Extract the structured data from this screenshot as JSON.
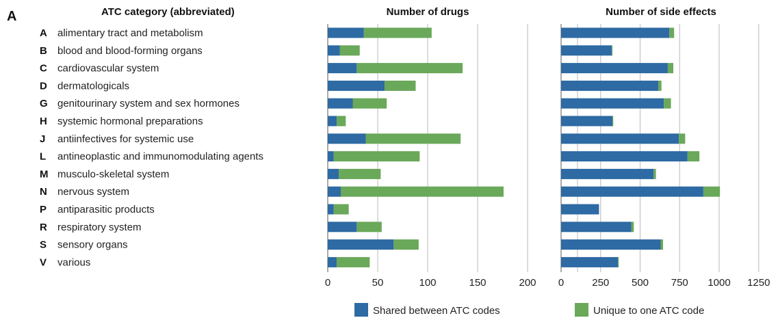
{
  "panel_label": "A",
  "colors": {
    "shared": "#2e6aa3",
    "unique": "#6aa85a"
  },
  "chart_data": {
    "type": "bar",
    "orientation": "horizontal",
    "stacked": true,
    "category_header": "ATC category (abbreviated)",
    "categories": [
      {
        "code": "A",
        "name": "alimentary tract and metabolism"
      },
      {
        "code": "B",
        "name": "blood and blood-forming organs"
      },
      {
        "code": "C",
        "name": "cardiovascular system"
      },
      {
        "code": "D",
        "name": "dermatologicals"
      },
      {
        "code": "G",
        "name": "genitourinary system and sex hormones"
      },
      {
        "code": "H",
        "name": "systemic hormonal preparations"
      },
      {
        "code": "J",
        "name": "antiinfectives for systemic use"
      },
      {
        "code": "L",
        "name": "antineoplastic and immunomodulating agents"
      },
      {
        "code": "M",
        "name": "musculo-skeletal system"
      },
      {
        "code": "N",
        "name": "nervous system"
      },
      {
        "code": "P",
        "name": "antiparasitic products"
      },
      {
        "code": "R",
        "name": "respiratory system"
      },
      {
        "code": "S",
        "name": "sensory organs"
      },
      {
        "code": "V",
        "name": "various"
      }
    ],
    "panels": [
      {
        "title": "Number of drugs",
        "xlim": [
          0,
          250
        ],
        "ticks": [
          "0",
          "50",
          "100",
          "150",
          "200"
        ],
        "tick_values": [
          0,
          50,
          100,
          150,
          200
        ],
        "gridlines": [
          50,
          100,
          150,
          200,
          250
        ],
        "series": [
          {
            "name": "Shared between ATC codes",
            "values": [
              36,
              12,
              29,
              57,
              25,
              9,
              38,
              6,
              11,
              13,
              6,
              29,
              66,
              9
            ]
          },
          {
            "name": "Unique to one ATC code",
            "values": [
              68,
              20,
              106,
              31,
              34,
              9,
              95,
              86,
              42,
              163,
              15,
              25,
              25,
              33
            ]
          }
        ]
      },
      {
        "title": "Number of side effects",
        "xlim": [
          0,
          1350
        ],
        "ticks": [
          "0",
          "250",
          "500",
          "750",
          "1000",
          "1250"
        ],
        "tick_values": [
          0,
          250,
          500,
          750,
          1000,
          1250
        ],
        "gridlines": [
          250,
          500,
          750,
          1000,
          1250
        ],
        "series": [
          {
            "name": "Shared between ATC codes",
            "values": [
              685,
              320,
              675,
              615,
              650,
              325,
              745,
              800,
              585,
              900,
              240,
              445,
              630,
              360
            ]
          },
          {
            "name": "Unique to one ATC code",
            "values": [
              30,
              5,
              35,
              20,
              45,
              5,
              40,
              75,
              15,
              105,
              0,
              15,
              15,
              5
            ]
          }
        ]
      }
    ],
    "legend": [
      "Shared between ATC codes",
      "Unique to one ATC code"
    ],
    "legend_position": "bottom"
  }
}
